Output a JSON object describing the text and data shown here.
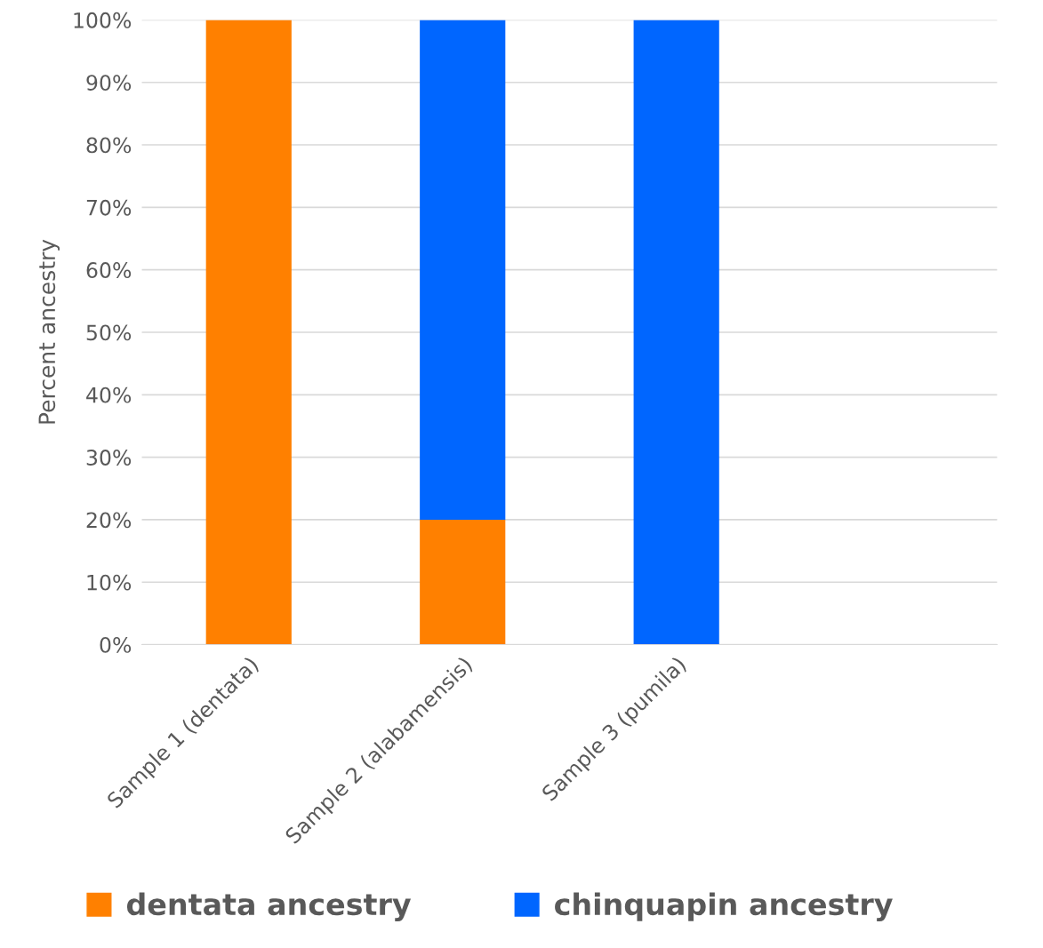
{
  "chart_data": {
    "type": "bar",
    "stacked": true,
    "ylabel": "Percent ancestry",
    "categories": [
      "Sample 1 (dentata)",
      "Sample 2 (alabamensis)",
      "Sample 3 (pumila)",
      null
    ],
    "series": [
      {
        "name": "dentata ancestry",
        "color": "#ff8000",
        "values": [
          100,
          20,
          0,
          null
        ]
      },
      {
        "name": "chinquapin ancestry",
        "color": "#0066ff",
        "values": [
          0,
          80,
          100,
          null
        ]
      }
    ],
    "ylim": [
      0,
      100
    ],
    "yticks": [
      {
        "value": 0,
        "label": "0%"
      },
      {
        "value": 10,
        "label": "10%"
      },
      {
        "value": 20,
        "label": "20%"
      },
      {
        "value": 30,
        "label": "30%"
      },
      {
        "value": 40,
        "label": "40%"
      },
      {
        "value": 50,
        "label": "50%"
      },
      {
        "value": 60,
        "label": "60%"
      },
      {
        "value": 70,
        "label": "70%"
      },
      {
        "value": 80,
        "label": "80%"
      },
      {
        "value": 90,
        "label": "90%"
      },
      {
        "value": 100,
        "label": "100%"
      }
    ],
    "grid": "y",
    "legend": "bottom"
  }
}
